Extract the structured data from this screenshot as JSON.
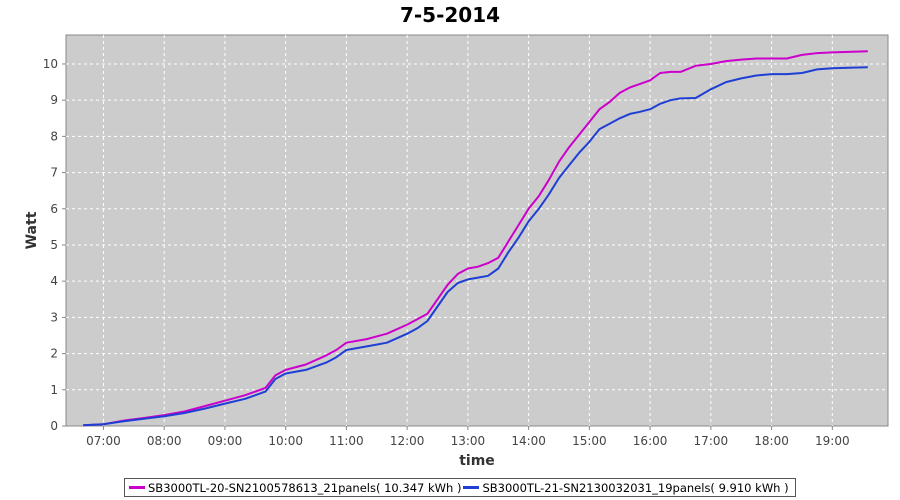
{
  "chart_data": {
    "type": "line",
    "title": "7-5-2014",
    "xlabel": "time",
    "ylabel": "Watt",
    "xlim": [
      "06:23",
      "19:55"
    ],
    "ylim": [
      0,
      10.8
    ],
    "x_ticks": [
      "07:00",
      "08:00",
      "09:00",
      "10:00",
      "11:00",
      "12:00",
      "13:00",
      "14:00",
      "15:00",
      "16:00",
      "17:00",
      "18:00",
      "19:00"
    ],
    "y_ticks": [
      "0",
      "1",
      "2",
      "3",
      "4",
      "5",
      "6",
      "7",
      "8",
      "9",
      "10"
    ],
    "grid": true,
    "legend_position": "bottom",
    "series": [
      {
        "name": "SB3000TL-20-SN2100578613_21panels( 10.347 kWh )",
        "color": "#cc00cc",
        "x": [
          "06:40",
          "07:00",
          "07:20",
          "07:40",
          "08:00",
          "08:20",
          "08:40",
          "09:00",
          "09:20",
          "09:40",
          "09:50",
          "10:00",
          "10:20",
          "10:40",
          "10:50",
          "11:00",
          "11:20",
          "11:40",
          "12:00",
          "12:10",
          "12:20",
          "12:30",
          "12:40",
          "12:50",
          "13:00",
          "13:10",
          "13:20",
          "13:30",
          "13:40",
          "13:50",
          "14:00",
          "14:10",
          "14:20",
          "14:30",
          "14:40",
          "14:50",
          "15:00",
          "15:10",
          "15:20",
          "15:30",
          "15:40",
          "15:50",
          "16:00",
          "16:10",
          "16:20",
          "16:30",
          "16:45",
          "17:00",
          "17:15",
          "17:30",
          "17:45",
          "18:00",
          "18:15",
          "18:30",
          "18:45",
          "19:00",
          "19:20",
          "19:35"
        ],
        "y": [
          0.02,
          0.05,
          0.15,
          0.22,
          0.3,
          0.4,
          0.55,
          0.7,
          0.85,
          1.05,
          1.4,
          1.55,
          1.7,
          1.95,
          2.1,
          2.3,
          2.4,
          2.55,
          2.8,
          2.95,
          3.1,
          3.5,
          3.9,
          4.2,
          4.35,
          4.4,
          4.5,
          4.65,
          5.1,
          5.55,
          6.0,
          6.35,
          6.8,
          7.3,
          7.7,
          8.05,
          8.4,
          8.75,
          8.95,
          9.2,
          9.35,
          9.45,
          9.55,
          9.75,
          9.78,
          9.78,
          9.95,
          10.0,
          10.08,
          10.12,
          10.15,
          10.15,
          10.15,
          10.25,
          10.3,
          10.32,
          10.34,
          10.35
        ]
      },
      {
        "name": "SB3000TL-21-SN2130032031_19panels( 9.910 kWh )",
        "color": "#1f3fd4",
        "x": [
          "06:40",
          "07:00",
          "07:20",
          "07:40",
          "08:00",
          "08:20",
          "08:40",
          "09:00",
          "09:20",
          "09:40",
          "09:50",
          "10:00",
          "10:20",
          "10:40",
          "10:50",
          "11:00",
          "11:20",
          "11:40",
          "12:00",
          "12:10",
          "12:20",
          "12:30",
          "12:40",
          "12:50",
          "13:00",
          "13:10",
          "13:20",
          "13:30",
          "13:40",
          "13:50",
          "14:00",
          "14:10",
          "14:20",
          "14:30",
          "14:40",
          "14:50",
          "15:00",
          "15:10",
          "15:20",
          "15:30",
          "15:40",
          "15:50",
          "16:00",
          "16:10",
          "16:20",
          "16:30",
          "16:45",
          "17:00",
          "17:15",
          "17:30",
          "17:45",
          "18:00",
          "18:15",
          "18:30",
          "18:45",
          "19:00",
          "19:20",
          "19:35"
        ],
        "y": [
          0.02,
          0.05,
          0.13,
          0.2,
          0.27,
          0.36,
          0.48,
          0.62,
          0.75,
          0.95,
          1.3,
          1.45,
          1.55,
          1.75,
          1.9,
          2.1,
          2.2,
          2.3,
          2.55,
          2.7,
          2.9,
          3.3,
          3.7,
          3.95,
          4.05,
          4.1,
          4.15,
          4.35,
          4.8,
          5.2,
          5.65,
          6.0,
          6.4,
          6.85,
          7.2,
          7.55,
          7.85,
          8.2,
          8.35,
          8.5,
          8.62,
          8.68,
          8.75,
          8.9,
          9.0,
          9.05,
          9.06,
          9.3,
          9.5,
          9.6,
          9.68,
          9.72,
          9.72,
          9.75,
          9.85,
          9.88,
          9.9,
          9.91
        ]
      }
    ]
  },
  "legend": {
    "items": [
      {
        "label": "SB3000TL-20-SN2100578613_21panels( 10.347 kWh )",
        "color": "#cc00cc"
      },
      {
        "label": "SB3000TL-21-SN2130032031_19panels( 9.910 kWh )",
        "color": "#1f3fd4"
      }
    ]
  }
}
